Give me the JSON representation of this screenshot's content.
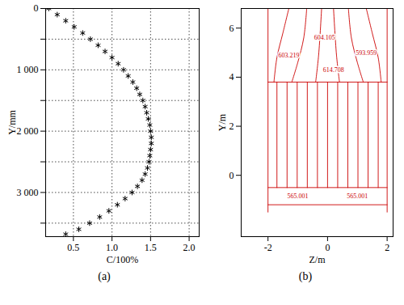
{
  "chart_data": [
    {
      "type": "scatter",
      "caption": "(a)",
      "x_label": "C/100%",
      "y_label": "Y/mm",
      "marker": "asterisk",
      "line_style": "none",
      "color": "#000000",
      "grid": true,
      "x": [
        0.18,
        0.29,
        0.4,
        0.51,
        0.62,
        0.72,
        0.82,
        0.91,
        1.0,
        1.08,
        1.15,
        1.21,
        1.27,
        1.32,
        1.36,
        1.4,
        1.43,
        1.45,
        1.47,
        1.49,
        1.5,
        1.51,
        1.51,
        1.5,
        1.49,
        1.48,
        1.46,
        1.43,
        1.39,
        1.33,
        1.26,
        1.17,
        1.07,
        0.96,
        0.84,
        0.71,
        0.57,
        0.4
      ],
      "y": [
        0,
        100,
        200,
        300,
        400,
        500,
        600,
        700,
        800,
        900,
        1000,
        1100,
        1200,
        1300,
        1400,
        1500,
        1600,
        1700,
        1800,
        1900,
        2000,
        2100,
        2200,
        2300,
        2400,
        2500,
        2600,
        2700,
        2800,
        2900,
        3000,
        3100,
        3200,
        3300,
        3400,
        3500,
        3600,
        3680
      ],
      "xlim": [
        0.14,
        2.13
      ],
      "xticks": [
        0.5,
        {
          "value": 1,
          "label": "1.0"
        },
        1.5,
        {
          "value": 2,
          "label": "2.0"
        }
      ],
      "ylim": [
        0,
        3720
      ],
      "yticks": [
        0,
        {
          "value": 500,
          "label": null
        },
        {
          "value": 1000,
          "label": "1 000"
        },
        {
          "value": 1500,
          "label": null
        },
        {
          "value": 2000,
          "label": "2 000"
        },
        {
          "value": 2500,
          "label": null
        },
        {
          "value": 3000,
          "label": "3 000"
        },
        {
          "value": 3500,
          "label": null
        }
      ]
    },
    {
      "type": "contour",
      "caption": "(b)",
      "x_label": "Z/m",
      "y_label": "Y/m",
      "color": "#cc0000",
      "grid": false,
      "xlim": [
        -2.9,
        2.2
      ],
      "xticks": [
        -2,
        0,
        2
      ],
      "ylim": [
        -2.5,
        6.8
      ],
      "yticks": [
        0,
        2,
        4,
        6
      ],
      "lines": [
        [
          [
            -2,
            -1.5
          ],
          [
            -2,
            6.8
          ]
        ],
        [
          [
            2,
            -1.5
          ],
          [
            2,
            6.8
          ]
        ],
        [
          [
            -2,
            3.8
          ],
          [
            2,
            3.8
          ]
        ],
        [
          [
            -2,
            -0.5
          ],
          [
            2,
            -0.5
          ]
        ],
        [
          [
            -2,
            -1.2
          ],
          [
            2,
            -1.2
          ]
        ],
        [
          [
            -1.7,
            -0.5
          ],
          [
            -1.7,
            3.8
          ]
        ],
        [
          [
            -1.36,
            -0.5
          ],
          [
            -1.36,
            3.8
          ]
        ],
        [
          [
            -1.02,
            -0.5
          ],
          [
            -1.02,
            3.8
          ]
        ],
        [
          [
            -0.68,
            -0.5
          ],
          [
            -0.68,
            3.8
          ]
        ],
        [
          [
            -0.34,
            -0.5
          ],
          [
            -0.34,
            3.8
          ]
        ],
        [
          [
            0,
            -0.5
          ],
          [
            0,
            3.8
          ]
        ],
        [
          [
            0.34,
            -0.5
          ],
          [
            0.34,
            3.8
          ]
        ],
        [
          [
            0.68,
            -0.5
          ],
          [
            0.68,
            3.8
          ]
        ],
        [
          [
            1.02,
            -0.5
          ],
          [
            1.02,
            3.8
          ]
        ],
        [
          [
            1.36,
            -0.5
          ],
          [
            1.36,
            3.8
          ]
        ],
        [
          [
            1.7,
            -0.5
          ],
          [
            1.7,
            3.8
          ]
        ],
        [
          [
            -1.8,
            3.8
          ],
          [
            -1.7,
            4.8
          ],
          [
            -1.5,
            5.8
          ],
          [
            -1.3,
            6.8
          ]
        ],
        [
          [
            -1.2,
            3.8
          ],
          [
            -1.0,
            4.6
          ],
          [
            -0.8,
            5.6
          ],
          [
            -0.7,
            6.8
          ]
        ],
        [
          [
            -0.4,
            3.8
          ],
          [
            -0.3,
            4.9
          ],
          [
            -0.2,
            6.8
          ]
        ],
        [
          [
            0.4,
            3.8
          ],
          [
            0.3,
            4.9
          ],
          [
            0.2,
            6.8
          ]
        ],
        [
          [
            1.2,
            3.8
          ],
          [
            1.0,
            4.6
          ],
          [
            0.8,
            5.6
          ],
          [
            0.7,
            6.8
          ]
        ],
        [
          [
            1.8,
            3.8
          ],
          [
            1.7,
            4.8
          ],
          [
            1.5,
            5.8
          ],
          [
            1.3,
            6.8
          ]
        ]
      ],
      "annotations": [
        {
          "text": "603.219",
          "x": -1.3,
          "y": 4.9
        },
        {
          "text": "604.105",
          "x": -0.1,
          "y": 5.6
        },
        {
          "text": "614.708",
          "x": 0.2,
          "y": 4.3
        },
        {
          "text": "593.959",
          "x": 1.3,
          "y": 5.0
        },
        {
          "text": "565.001",
          "x": -1.0,
          "y": -0.85
        },
        {
          "text": "565.001",
          "x": 1.0,
          "y": -0.85
        }
      ]
    }
  ]
}
